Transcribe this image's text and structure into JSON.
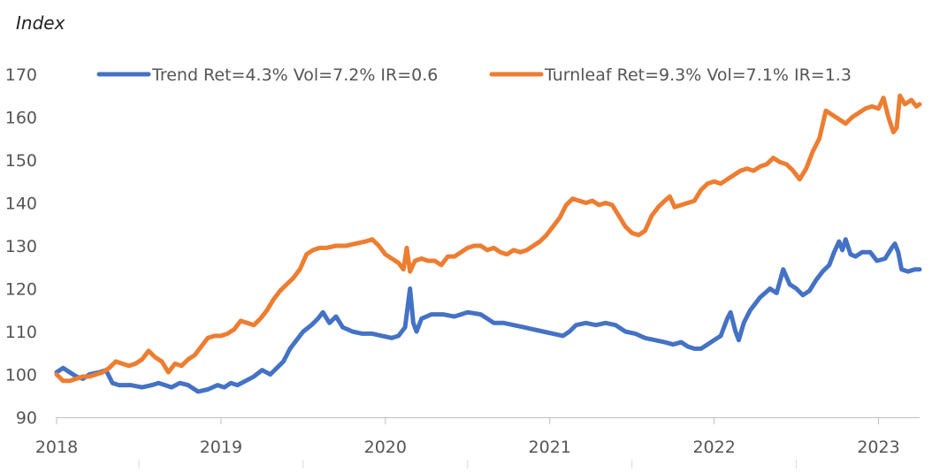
{
  "chart_data": {
    "type": "line",
    "ylabel": "Index",
    "ylim": [
      90,
      170
    ],
    "yticks": [
      90,
      100,
      110,
      120,
      130,
      140,
      150,
      160,
      170
    ],
    "xticks": [
      2018,
      2019,
      2020,
      2021,
      2022,
      2023
    ],
    "xlim": [
      2018.0,
      2023.25
    ],
    "grid": false,
    "legend_position": "top",
    "series": [
      {
        "name": "Trend Ret=4.3% Vol=7.2% IR=0.6",
        "color": "#4472C4",
        "points": [
          [
            2018.0,
            100.5
          ],
          [
            2018.04,
            101.5
          ],
          [
            2018.08,
            100.5
          ],
          [
            2018.12,
            99.5
          ],
          [
            2018.16,
            99.0
          ],
          [
            2018.2,
            100.0
          ],
          [
            2018.26,
            100.5
          ],
          [
            2018.3,
            101.0
          ],
          [
            2018.34,
            98.0
          ],
          [
            2018.38,
            97.5
          ],
          [
            2018.45,
            97.5
          ],
          [
            2018.52,
            97.0
          ],
          [
            2018.58,
            97.5
          ],
          [
            2018.62,
            98.0
          ],
          [
            2018.66,
            97.5
          ],
          [
            2018.7,
            97.0
          ],
          [
            2018.75,
            98.0
          ],
          [
            2018.8,
            97.5
          ],
          [
            2018.86,
            96.0
          ],
          [
            2018.92,
            96.5
          ],
          [
            2018.98,
            97.5
          ],
          [
            2019.02,
            97.0
          ],
          [
            2019.06,
            98.0
          ],
          [
            2019.1,
            97.5
          ],
          [
            2019.15,
            98.5
          ],
          [
            2019.2,
            99.5
          ],
          [
            2019.25,
            101.0
          ],
          [
            2019.3,
            100.0
          ],
          [
            2019.34,
            101.5
          ],
          [
            2019.38,
            103.0
          ],
          [
            2019.42,
            106.0
          ],
          [
            2019.46,
            108.0
          ],
          [
            2019.5,
            110.0
          ],
          [
            2019.55,
            111.5
          ],
          [
            2019.59,
            113.0
          ],
          [
            2019.62,
            114.5
          ],
          [
            2019.66,
            112.0
          ],
          [
            2019.7,
            113.5
          ],
          [
            2019.74,
            111.0
          ],
          [
            2019.8,
            110.0
          ],
          [
            2019.86,
            109.5
          ],
          [
            2019.92,
            109.5
          ],
          [
            2019.98,
            109.0
          ],
          [
            2020.04,
            108.5
          ],
          [
            2020.08,
            109.0
          ],
          [
            2020.12,
            111.0
          ],
          [
            2020.15,
            120.0
          ],
          [
            2020.17,
            112.0
          ],
          [
            2020.19,
            110.0
          ],
          [
            2020.22,
            113.0
          ],
          [
            2020.28,
            114.0
          ],
          [
            2020.35,
            114.0
          ],
          [
            2020.42,
            113.5
          ],
          [
            2020.5,
            114.5
          ],
          [
            2020.58,
            114.0
          ],
          [
            2020.62,
            113.0
          ],
          [
            2020.66,
            112.0
          ],
          [
            2020.72,
            112.0
          ],
          [
            2020.78,
            111.5
          ],
          [
            2020.84,
            111.0
          ],
          [
            2020.9,
            110.5
          ],
          [
            2020.96,
            110.0
          ],
          [
            2021.02,
            109.5
          ],
          [
            2021.08,
            109.0
          ],
          [
            2021.12,
            110.0
          ],
          [
            2021.16,
            111.5
          ],
          [
            2021.22,
            112.0
          ],
          [
            2021.28,
            111.5
          ],
          [
            2021.34,
            112.0
          ],
          [
            2021.4,
            111.5
          ],
          [
            2021.46,
            110.0
          ],
          [
            2021.52,
            109.5
          ],
          [
            2021.58,
            108.5
          ],
          [
            2021.64,
            108.0
          ],
          [
            2021.7,
            107.5
          ],
          [
            2021.75,
            107.0
          ],
          [
            2021.8,
            107.5
          ],
          [
            2021.84,
            106.5
          ],
          [
            2021.88,
            106.0
          ],
          [
            2021.92,
            106.0
          ],
          [
            2021.96,
            107.0
          ],
          [
            2022.0,
            108.0
          ],
          [
            2022.04,
            109.0
          ],
          [
            2022.08,
            113.0
          ],
          [
            2022.1,
            114.5
          ],
          [
            2022.13,
            110.0
          ],
          [
            2022.15,
            108.0
          ],
          [
            2022.18,
            112.0
          ],
          [
            2022.22,
            115.0
          ],
          [
            2022.28,
            118.0
          ],
          [
            2022.34,
            120.0
          ],
          [
            2022.38,
            119.0
          ],
          [
            2022.42,
            124.5
          ],
          [
            2022.46,
            121.0
          ],
          [
            2022.5,
            120.0
          ],
          [
            2022.54,
            118.5
          ],
          [
            2022.58,
            119.5
          ],
          [
            2022.62,
            122.0
          ],
          [
            2022.66,
            124.0
          ],
          [
            2022.7,
            125.5
          ],
          [
            2022.73,
            128.5
          ],
          [
            2022.76,
            131.0
          ],
          [
            2022.78,
            129.0
          ],
          [
            2022.8,
            131.5
          ],
          [
            2022.83,
            128.0
          ],
          [
            2022.86,
            127.5
          ],
          [
            2022.9,
            128.5
          ],
          [
            2022.95,
            128.5
          ],
          [
            2022.99,
            126.5
          ],
          [
            2023.04,
            127.0
          ],
          [
            2023.08,
            129.5
          ],
          [
            2023.1,
            130.5
          ],
          [
            2023.12,
            128.5
          ],
          [
            2023.14,
            124.5
          ],
          [
            2023.18,
            124.0
          ],
          [
            2023.22,
            124.5
          ],
          [
            2023.25,
            124.5
          ]
        ]
      },
      {
        "name": "Turnleaf Ret=9.3% Vol=7.1% IR=1.3",
        "color": "#ED7D31",
        "points": [
          [
            2018.0,
            100.0
          ],
          [
            2018.04,
            98.5
          ],
          [
            2018.08,
            98.5
          ],
          [
            2018.12,
            99.0
          ],
          [
            2018.16,
            99.5
          ],
          [
            2018.2,
            99.5
          ],
          [
            2018.24,
            100.0
          ],
          [
            2018.28,
            100.5
          ],
          [
            2018.32,
            101.5
          ],
          [
            2018.36,
            103.0
          ],
          [
            2018.4,
            102.5
          ],
          [
            2018.44,
            102.0
          ],
          [
            2018.48,
            102.5
          ],
          [
            2018.52,
            103.5
          ],
          [
            2018.56,
            105.5
          ],
          [
            2018.6,
            104.0
          ],
          [
            2018.64,
            103.0
          ],
          [
            2018.68,
            100.5
          ],
          [
            2018.72,
            102.5
          ],
          [
            2018.76,
            102.0
          ],
          [
            2018.8,
            103.5
          ],
          [
            2018.84,
            104.5
          ],
          [
            2018.88,
            106.5
          ],
          [
            2018.92,
            108.5
          ],
          [
            2018.96,
            109.0
          ],
          [
            2019.0,
            109.0
          ],
          [
            2019.04,
            109.5
          ],
          [
            2019.08,
            110.5
          ],
          [
            2019.12,
            112.5
          ],
          [
            2019.16,
            112.0
          ],
          [
            2019.2,
            111.5
          ],
          [
            2019.24,
            113.0
          ],
          [
            2019.28,
            115.0
          ],
          [
            2019.32,
            117.5
          ],
          [
            2019.36,
            119.5
          ],
          [
            2019.4,
            121.0
          ],
          [
            2019.44,
            122.5
          ],
          [
            2019.48,
            124.5
          ],
          [
            2019.52,
            128.0
          ],
          [
            2019.56,
            129.0
          ],
          [
            2019.6,
            129.5
          ],
          [
            2019.64,
            129.5
          ],
          [
            2019.7,
            130.0
          ],
          [
            2019.76,
            130.0
          ],
          [
            2019.82,
            130.5
          ],
          [
            2019.88,
            131.0
          ],
          [
            2019.92,
            131.5
          ],
          [
            2019.96,
            130.0
          ],
          [
            2020.0,
            128.0
          ],
          [
            2020.04,
            127.0
          ],
          [
            2020.08,
            126.0
          ],
          [
            2020.11,
            124.5
          ],
          [
            2020.13,
            129.5
          ],
          [
            2020.15,
            124.0
          ],
          [
            2020.18,
            126.5
          ],
          [
            2020.22,
            127.0
          ],
          [
            2020.26,
            126.5
          ],
          [
            2020.3,
            126.5
          ],
          [
            2020.34,
            125.5
          ],
          [
            2020.38,
            127.5
          ],
          [
            2020.42,
            127.5
          ],
          [
            2020.46,
            128.5
          ],
          [
            2020.5,
            129.5
          ],
          [
            2020.54,
            130.0
          ],
          [
            2020.58,
            130.0
          ],
          [
            2020.62,
            129.0
          ],
          [
            2020.66,
            129.5
          ],
          [
            2020.7,
            128.5
          ],
          [
            2020.74,
            128.0
          ],
          [
            2020.78,
            129.0
          ],
          [
            2020.82,
            128.5
          ],
          [
            2020.86,
            129.0
          ],
          [
            2020.9,
            130.0
          ],
          [
            2020.94,
            131.0
          ],
          [
            2020.98,
            132.5
          ],
          [
            2021.02,
            134.5
          ],
          [
            2021.06,
            136.5
          ],
          [
            2021.1,
            139.5
          ],
          [
            2021.14,
            141.0
          ],
          [
            2021.18,
            140.5
          ],
          [
            2021.22,
            140.0
          ],
          [
            2021.26,
            140.5
          ],
          [
            2021.3,
            139.5
          ],
          [
            2021.34,
            140.0
          ],
          [
            2021.38,
            139.5
          ],
          [
            2021.42,
            137.0
          ],
          [
            2021.46,
            134.5
          ],
          [
            2021.5,
            133.0
          ],
          [
            2021.54,
            132.5
          ],
          [
            2021.58,
            133.5
          ],
          [
            2021.62,
            137.0
          ],
          [
            2021.66,
            139.0
          ],
          [
            2021.7,
            140.5
          ],
          [
            2021.73,
            141.5
          ],
          [
            2021.76,
            139.0
          ],
          [
            2021.8,
            139.5
          ],
          [
            2021.84,
            140.0
          ],
          [
            2021.88,
            140.5
          ],
          [
            2021.92,
            143.0
          ],
          [
            2021.96,
            144.5
          ],
          [
            2022.0,
            145.0
          ],
          [
            2022.04,
            144.5
          ],
          [
            2022.08,
            145.5
          ],
          [
            2022.12,
            146.5
          ],
          [
            2022.16,
            147.5
          ],
          [
            2022.2,
            148.0
          ],
          [
            2022.24,
            147.5
          ],
          [
            2022.28,
            148.5
          ],
          [
            2022.32,
            149.0
          ],
          [
            2022.36,
            150.5
          ],
          [
            2022.4,
            149.5
          ],
          [
            2022.44,
            149.0
          ],
          [
            2022.48,
            147.5
          ],
          [
            2022.52,
            145.5
          ],
          [
            2022.56,
            148.0
          ],
          [
            2022.6,
            152.0
          ],
          [
            2022.64,
            155.0
          ],
          [
            2022.68,
            161.5
          ],
          [
            2022.72,
            160.5
          ],
          [
            2022.76,
            159.5
          ],
          [
            2022.8,
            158.5
          ],
          [
            2022.84,
            160.0
          ],
          [
            2022.88,
            161.0
          ],
          [
            2022.92,
            162.0
          ],
          [
            2022.96,
            162.5
          ],
          [
            2023.0,
            162.0
          ],
          [
            2023.03,
            164.5
          ],
          [
            2023.06,
            160.0
          ],
          [
            2023.09,
            156.5
          ],
          [
            2023.11,
            157.5
          ],
          [
            2023.13,
            165.0
          ],
          [
            2023.16,
            163.0
          ],
          [
            2023.2,
            164.0
          ],
          [
            2023.23,
            162.5
          ],
          [
            2023.25,
            163.0
          ]
        ]
      }
    ]
  }
}
